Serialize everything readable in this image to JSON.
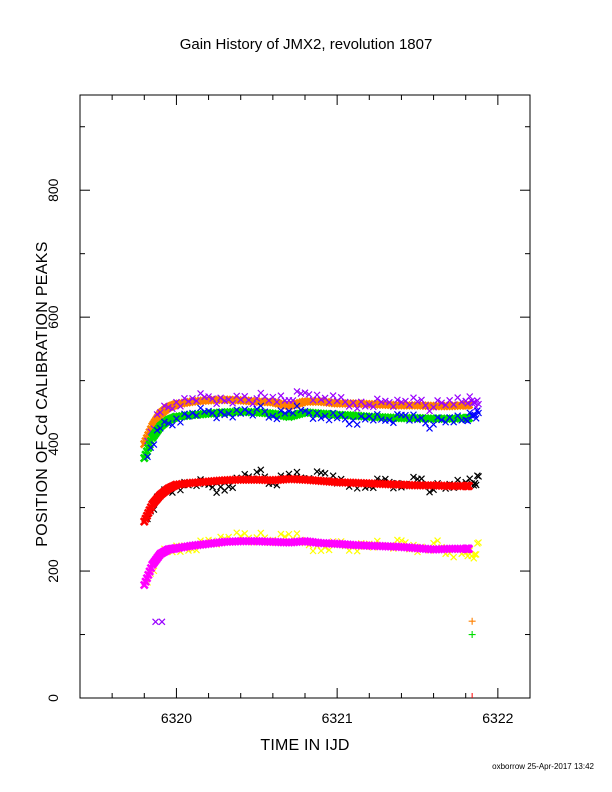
{
  "chart_data": {
    "type": "scatter",
    "title": "Gain History of JMX2, revolution 1807",
    "xlabel": "TIME IN IJD",
    "ylabel": "POSITION OF Cd CALIBRATION PEAKS",
    "xlim": [
      6319.4,
      6322.2
    ],
    "ylim": [
      0,
      950
    ],
    "xticks": [
      6320,
      6321,
      6322
    ],
    "yticks": [
      0,
      200,
      400,
      600,
      800
    ],
    "xtick_labels": [
      "6320",
      "6321",
      "6322"
    ],
    "ytick_labels": [
      "0",
      "200",
      "400",
      "600",
      "800"
    ],
    "grid": false,
    "legend": "none",
    "series": [
      {
        "color": "#ff8000",
        "marker": "x-thick",
        "x": [
          6319.8,
          6319.85,
          6319.9,
          6319.95,
          6320.0,
          6320.1,
          6320.2,
          6320.3,
          6320.4,
          6320.5,
          6320.6,
          6320.7,
          6320.8,
          6320.9,
          6321.0,
          6321.1,
          6321.2,
          6321.3,
          6321.4,
          6321.5,
          6321.6,
          6321.7,
          6321.8,
          6321.82
        ],
        "y": [
          400,
          428,
          448,
          458,
          463,
          467,
          469,
          470,
          469,
          467,
          466,
          460,
          467,
          467,
          464,
          464,
          463,
          462,
          461,
          461,
          460,
          460,
          461,
          462
        ]
      },
      {
        "color": "#9900ff",
        "marker": "x",
        "x": [
          6319.82,
          6319.9,
          6320.0,
          6320.1,
          6320.2,
          6320.3,
          6320.4,
          6320.5,
          6320.6,
          6320.7,
          6320.8,
          6320.9,
          6321.0,
          6321.1,
          6321.2,
          6321.3,
          6321.4,
          6321.5,
          6321.6,
          6321.7,
          6321.8,
          6321.85,
          6321.88
        ],
        "y": [
          405,
          450,
          466,
          472,
          475,
          468,
          470,
          472,
          474,
          469,
          481,
          470,
          468,
          465,
          462,
          468,
          466,
          467,
          458,
          469,
          468,
          466,
          463
        ]
      },
      {
        "color": "#00dd00",
        "marker": "x-thick",
        "x": [
          6319.8,
          6319.85,
          6319.9,
          6319.95,
          6320.0,
          6320.1,
          6320.2,
          6320.3,
          6320.4,
          6320.5,
          6320.6,
          6320.7,
          6320.8,
          6320.9,
          6321.0,
          6321.1,
          6321.2,
          6321.3,
          6321.4,
          6321.5,
          6321.6,
          6321.7,
          6321.8,
          6321.82
        ],
        "y": [
          378,
          410,
          428,
          438,
          443,
          446,
          448,
          450,
          451,
          450,
          448,
          443,
          450,
          448,
          446,
          445,
          443,
          442,
          441,
          441,
          440,
          440,
          441,
          441
        ]
      },
      {
        "color": "#0000ff",
        "marker": "x",
        "x": [
          6319.82,
          6319.9,
          6320.0,
          6320.1,
          6320.2,
          6320.3,
          6320.4,
          6320.5,
          6320.6,
          6320.7,
          6320.8,
          6320.9,
          6321.0,
          6321.1,
          6321.2,
          6321.3,
          6321.4,
          6321.5,
          6321.6,
          6321.7,
          6321.8,
          6321.85,
          6321.88
        ],
        "y": [
          380,
          425,
          440,
          449,
          452,
          446,
          448,
          455,
          444,
          452,
          452,
          441,
          441,
          437,
          444,
          437,
          446,
          438,
          431,
          442,
          438,
          445,
          449
        ]
      },
      {
        "color": "#000000",
        "marker": "x",
        "x": [
          6319.82,
          6319.9,
          6320.0,
          6320.1,
          6320.2,
          6320.3,
          6320.4,
          6320.5,
          6320.6,
          6320.7,
          6320.8,
          6320.9,
          6321.0,
          6321.1,
          6321.2,
          6321.3,
          6321.4,
          6321.5,
          6321.6,
          6321.7,
          6321.8,
          6321.85,
          6321.88
        ],
        "y": [
          282,
          318,
          334,
          340,
          336,
          327,
          345,
          356,
          338,
          353,
          343,
          355,
          338,
          340,
          333,
          345,
          332,
          345,
          328,
          337,
          340,
          335,
          349
        ]
      },
      {
        "color": "#ff0000",
        "marker": "x-thick",
        "x": [
          6319.8,
          6319.85,
          6319.9,
          6319.95,
          6320.0,
          6320.1,
          6320.2,
          6320.3,
          6320.4,
          6320.5,
          6320.6,
          6320.7,
          6320.8,
          6320.9,
          6321.0,
          6321.1,
          6321.2,
          6321.3,
          6321.4,
          6321.5,
          6321.6,
          6321.7,
          6321.8,
          6321.82
        ],
        "y": [
          278,
          305,
          320,
          330,
          336,
          339,
          341,
          343,
          344,
          344,
          343,
          345,
          344,
          342,
          340,
          339,
          338,
          337,
          336,
          335,
          335,
          334,
          334,
          334
        ]
      },
      {
        "color": "#ffff00",
        "marker": "x",
        "x": [
          6319.82,
          6319.9,
          6320.0,
          6320.1,
          6320.2,
          6320.3,
          6320.4,
          6320.5,
          6320.6,
          6320.7,
          6320.8,
          6320.9,
          6321.0,
          6321.1,
          6321.2,
          6321.3,
          6321.4,
          6321.5,
          6321.6,
          6321.7,
          6321.8,
          6321.85,
          6321.88
        ],
        "y": [
          182,
          225,
          240,
          234,
          249,
          251,
          255,
          253,
          249,
          258,
          244,
          232,
          241,
          238,
          243,
          239,
          248,
          230,
          244,
          228,
          229,
          220,
          245
        ]
      },
      {
        "color": "#ff00ff",
        "marker": "x-thick",
        "x": [
          6319.8,
          6319.85,
          6319.9,
          6319.95,
          6320.0,
          6320.1,
          6320.2,
          6320.3,
          6320.4,
          6320.5,
          6320.6,
          6320.7,
          6320.8,
          6320.9,
          6321.0,
          6321.1,
          6321.2,
          6321.3,
          6321.4,
          6321.5,
          6321.6,
          6321.7,
          6321.8,
          6321.82
        ],
        "y": [
          178,
          210,
          227,
          234,
          236,
          240,
          243,
          246,
          247,
          247,
          246,
          245,
          247,
          244,
          243,
          241,
          240,
          239,
          238,
          236,
          234,
          235,
          235,
          235
        ]
      }
    ],
    "extra_marks": [
      {
        "color": "#9900ff",
        "marker": "x",
        "x": [
          6319.87,
          6319.91
        ],
        "y": [
          120,
          120
        ]
      },
      {
        "color": "#ff8000",
        "marker": "+",
        "x": [
          6321.84
        ],
        "y": [
          121
        ]
      },
      {
        "color": "#00dd00",
        "marker": "+",
        "x": [
          6321.84
        ],
        "y": [
          100
        ]
      }
    ]
  },
  "footer": "oxborrow 25-Apr-2017 13:42"
}
